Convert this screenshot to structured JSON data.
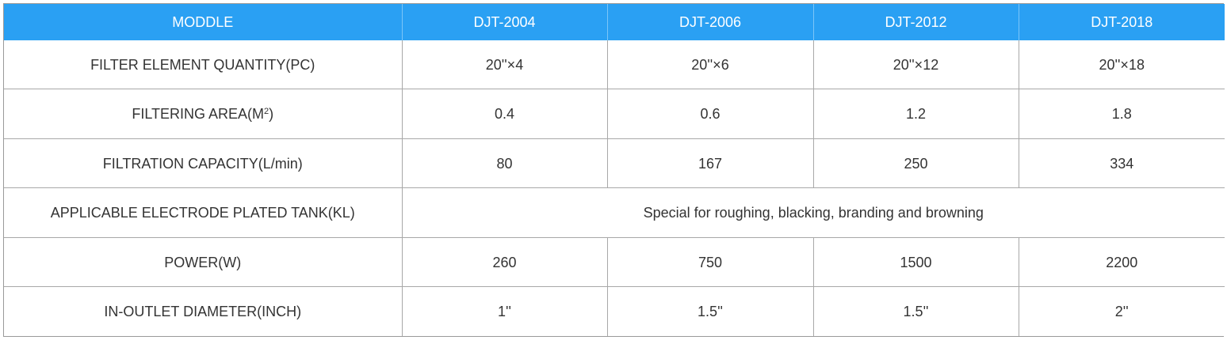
{
  "table": {
    "header": [
      "MODDLE",
      "DJT-2004",
      "DJT-2006",
      "DJT-2012",
      "DJT-2018"
    ],
    "rows": [
      {
        "label": "FILTER ELEMENT QUANTITY(PC)",
        "values": [
          "20''×4",
          "20''×6",
          "20''×12",
          "20''×18"
        ]
      },
      {
        "label_main": "FILTERING AREA(M",
        "label_sup": "2",
        "label_end": ")",
        "values": [
          "0.4",
          "0.6",
          "1.2",
          "1.8"
        ]
      },
      {
        "label": "FILTRATION CAPACITY(L/min)",
        "values": [
          "80",
          "167",
          "250",
          "334"
        ]
      },
      {
        "label": "APPLICABLE ELECTRODE PLATED TANK(KL)",
        "merged_value": "Special for roughing, blacking, branding and browning"
      },
      {
        "label": "POWER(W)",
        "values": [
          "260",
          "750",
          "1500",
          "2200"
        ]
      },
      {
        "label": "IN-OUTLET DIAMETER(INCH)",
        "values": [
          "1''",
          "1.5''",
          "1.5''",
          "2''"
        ]
      }
    ]
  },
  "colors": {
    "header_bg": "#2aa0f3",
    "header_text": "#ffffff",
    "body_text": "#333333",
    "grid_line": "#a8a8a8"
  }
}
